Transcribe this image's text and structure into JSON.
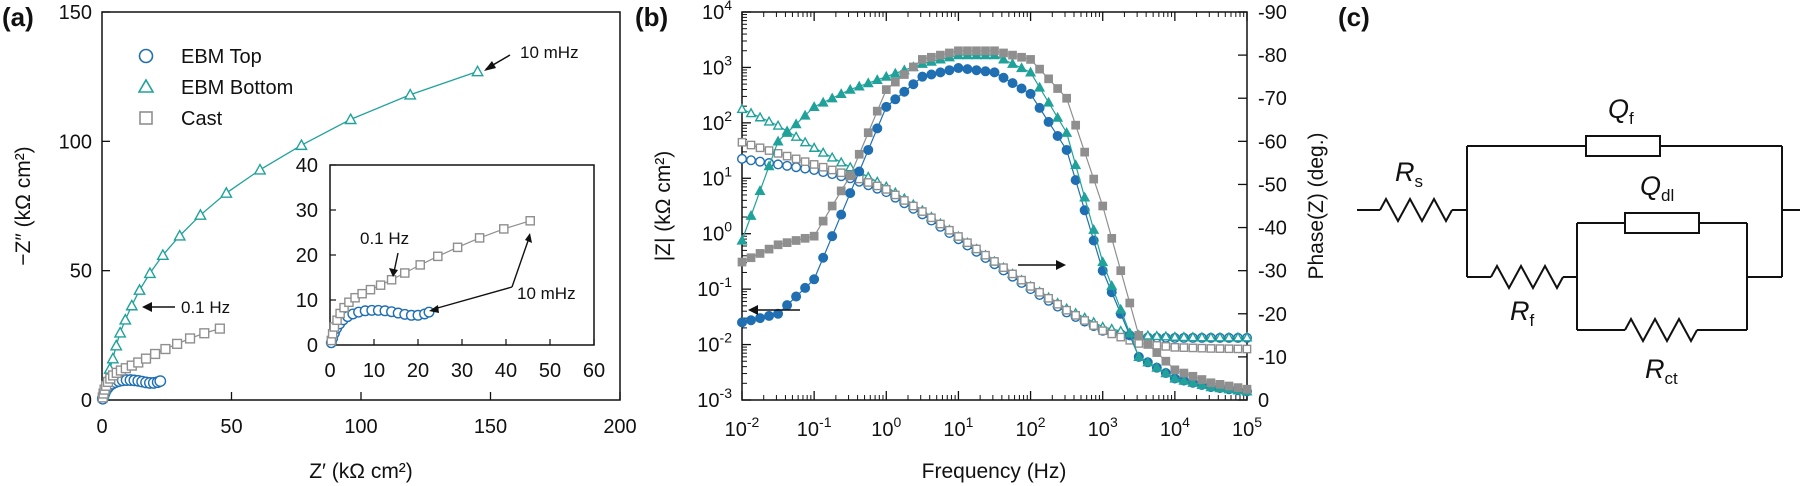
{
  "panels": {
    "a": "(a)",
    "b": "(b)",
    "c": "(c)"
  },
  "colors": {
    "ebm_top": "#1f6fb2",
    "ebm_bottom": "#20a29a",
    "cast": "#8f8f8f",
    "axis": "#111111"
  },
  "chart_data": [
    {
      "id": "a",
      "type": "scatter",
      "title": "",
      "xlabel": "Z′ (kΩ cm²)",
      "ylabel": "−Z″ (kΩ cm²)",
      "xlim": [
        0,
        200
      ],
      "ylim": [
        0,
        150
      ],
      "xticks": [
        "0",
        "50",
        "100",
        "150",
        "200"
      ],
      "yticks": [
        "0",
        "50",
        "100",
        "150"
      ],
      "legend_position": "top-left",
      "series": [
        {
          "name": "EBM Top",
          "marker": "circle-open",
          "x": [
            0.3,
            0.6,
            1.0,
            1.5,
            2.2,
            3.0,
            4.0,
            5.2,
            6.5,
            8.0,
            9.5,
            11.0,
            12.5,
            14.0,
            15.5,
            17.0,
            18.5,
            20.0,
            21.5,
            22.5
          ],
          "y": [
            0.5,
            1.5,
            2.6,
            3.7,
            4.7,
            5.6,
            6.3,
            6.9,
            7.3,
            7.6,
            7.7,
            7.7,
            7.6,
            7.4,
            7.1,
            6.8,
            6.6,
            6.6,
            6.9,
            7.3
          ]
        },
        {
          "name": "EBM Bottom",
          "marker": "triangle-open",
          "x": [
            0.5,
            1.0,
            2.0,
            3.0,
            4.2,
            5.5,
            7.0,
            9.0,
            11.5,
            14.5,
            18.5,
            23.5,
            30.0,
            38.0,
            48.0,
            61.0,
            77.0,
            96.0,
            119.0,
            145.0
          ],
          "y": [
            2.0,
            4.5,
            8.0,
            12.0,
            16.0,
            21.0,
            26.0,
            31.0,
            36.5,
            42.5,
            49.0,
            56.0,
            63.5,
            71.5,
            80.0,
            89.0,
            98.5,
            108.5,
            118.0,
            127.0
          ],
          "fit": true
        },
        {
          "name": "Cast",
          "marker": "square-open",
          "x": [
            0.3,
            0.6,
            1.0,
            1.6,
            2.3,
            3.2,
            4.3,
            5.7,
            7.3,
            9.2,
            11.5,
            14.0,
            17.0,
            20.5,
            24.5,
            29.0,
            34.0,
            39.5,
            45.5
          ],
          "y": [
            1.0,
            2.5,
            4.0,
            5.5,
            7.0,
            8.3,
            9.5,
            10.5,
            11.4,
            12.3,
            13.3,
            14.5,
            16.0,
            17.8,
            19.7,
            21.7,
            23.8,
            25.8,
            27.6
          ]
        }
      ],
      "annotations": [
        "10 mHz",
        "0.1 Hz"
      ],
      "inset": {
        "xlim": [
          0,
          60
        ],
        "ylim": [
          0,
          40
        ],
        "xticks": [
          "0",
          "10",
          "20",
          "30",
          "40",
          "50",
          "60"
        ],
        "yticks": [
          "0",
          "10",
          "20",
          "30",
          "40"
        ],
        "annotations": [
          "0.1 Hz",
          "10 mHz"
        ]
      }
    },
    {
      "id": "b",
      "type": "line",
      "xlabel": "Frequency (Hz)",
      "ylabel": "|Z| (kΩ cm²)",
      "y2label": "Phase(Z) (deg.)",
      "xscale": "log",
      "xlim_exp": [
        -2,
        5
      ],
      "ylim_exp": [
        -3,
        4
      ],
      "y2lim": [
        0,
        -90
      ],
      "y2ticks": [
        "0",
        "-10",
        "-20",
        "-30",
        "-40",
        "-50",
        "-60",
        "-70",
        "-80",
        "-90"
      ],
      "log_freq": [
        -2,
        -1.5,
        -1,
        -0.5,
        0,
        0.5,
        1,
        1.5,
        2,
        2.5,
        3,
        3.5,
        4,
        4.5,
        5
      ],
      "series": [
        {
          "name": "EBM Top |Z|",
          "style": "circle-open",
          "log_values": [
            1.35,
            1.25,
            1.15,
            1.0,
            0.75,
            0.35,
            -0.1,
            -0.55,
            -1.0,
            -1.42,
            -1.75,
            -1.87,
            -1.88,
            -1.88,
            -1.88
          ]
        },
        {
          "name": "EBM Bottom |Z|",
          "style": "triangle-open",
          "log_values": [
            2.25,
            1.95,
            1.55,
            1.2,
            0.85,
            0.42,
            -0.05,
            -0.5,
            -0.95,
            -1.35,
            -1.68,
            -1.83,
            -1.86,
            -1.87,
            -1.87
          ]
        },
        {
          "name": "Cast |Z|",
          "style": "square-open",
          "log_values": [
            1.65,
            1.45,
            1.25,
            1.05,
            0.8,
            0.4,
            -0.05,
            -0.5,
            -0.95,
            -1.38,
            -1.75,
            -1.98,
            -2.05,
            -2.07,
            -2.08
          ]
        },
        {
          "name": "EBM Top phase",
          "style": "circle-filled",
          "values": [
            -18,
            -20,
            -28,
            -48,
            -68,
            -75,
            -77,
            -76,
            -71,
            -58,
            -30,
            -10,
            -5,
            -3,
            -2
          ]
        },
        {
          "name": "EBM Bottom phase",
          "style": "triangle-filled",
          "values": [
            -37,
            -60,
            -68,
            -72,
            -75,
            -78,
            -80,
            -80,
            -76,
            -62,
            -32,
            -10,
            -5,
            -3,
            -2
          ]
        },
        {
          "name": "Cast phase",
          "style": "square-filled",
          "values": [
            -32,
            -36,
            -38,
            -52,
            -72,
            -79,
            -81,
            -81,
            -79,
            -70,
            -45,
            -15,
            -7,
            -4,
            -2.5
          ]
        }
      ],
      "arrows": [
        "left",
        "right"
      ]
    }
  ],
  "circuit": {
    "rs": {
      "main": "R",
      "sub": "s"
    },
    "qf": {
      "main": "Q",
      "sub": "f"
    },
    "qdl": {
      "main": "Q",
      "sub": "dl"
    },
    "rf": {
      "main": "R",
      "sub": "f"
    },
    "rct": {
      "main": "R",
      "sub": "ct"
    }
  }
}
